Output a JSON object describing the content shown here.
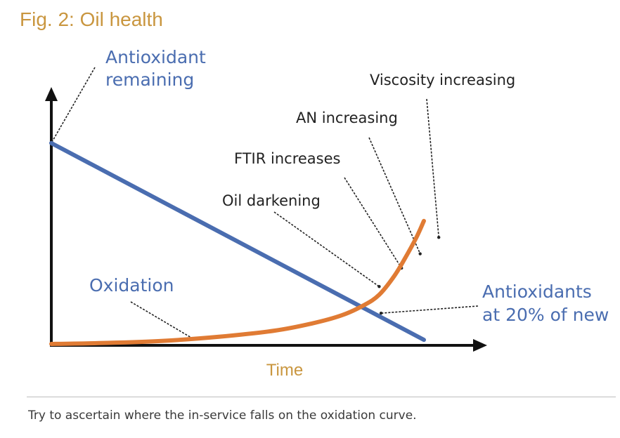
{
  "figure": {
    "title": "Fig. 2: Oil health",
    "caption": "Try to ascertain where the in-service falls on the oxidation curve."
  },
  "colors": {
    "title": "#c9963f",
    "antioxidant_line": "#4a6db0",
    "oxidation_curve": "#e07b34",
    "axis": "#111111",
    "annotation_text": "#222222",
    "series_label": "#4a6db0",
    "time_label": "#c9963f"
  },
  "chart_data": {
    "type": "line",
    "title": "Fig. 2: Oil health",
    "xlabel": "Time",
    "ylabel": "",
    "xlim": [
      0,
      100
    ],
    "ylim": [
      0,
      100
    ],
    "grid": false,
    "series": [
      {
        "name": "Antioxidant remaining",
        "x": [
          0,
          100
        ],
        "y": [
          98,
          2
        ]
      },
      {
        "name": "Oxidation",
        "x": [
          0,
          15,
          30,
          45,
          60,
          70,
          78,
          84,
          88,
          92,
          95,
          98,
          100
        ],
        "y": [
          0,
          0.5,
          1.5,
          3.5,
          6.5,
          10,
          14,
          19,
          24,
          33,
          42,
          52,
          60
        ]
      }
    ],
    "legend": "",
    "annotations": [
      {
        "name": "antioxidant-remaining",
        "text_lines": [
          "Antioxidant",
          "remaining"
        ],
        "series_label": true,
        "points_to": [
          0,
          98
        ]
      },
      {
        "name": "oxidation",
        "text_lines": [
          "Oxidation"
        ],
        "series_label": true,
        "points_to": [
          38,
          2.6
        ]
      },
      {
        "name": "oil-darkening",
        "text_lines": [
          "Oil darkening"
        ],
        "series_label": false,
        "points_to": [
          88,
          28
        ]
      },
      {
        "name": "ftir-increases",
        "text_lines": [
          "FTIR increases"
        ],
        "series_label": false,
        "points_to": [
          94,
          37
        ]
      },
      {
        "name": "an-increasing",
        "text_lines": [
          "AN increasing"
        ],
        "series_label": false,
        "points_to": [
          99,
          44
        ]
      },
      {
        "name": "viscosity-increasing",
        "text_lines": [
          "Viscosity increasing"
        ],
        "series_label": false,
        "points_to": [
          104,
          52
        ]
      },
      {
        "name": "antioxidants-20pct",
        "text_lines": [
          "Antioxidants",
          "at 20% of new"
        ],
        "series_label": true,
        "points_to": [
          88.5,
          15
        ]
      }
    ]
  }
}
